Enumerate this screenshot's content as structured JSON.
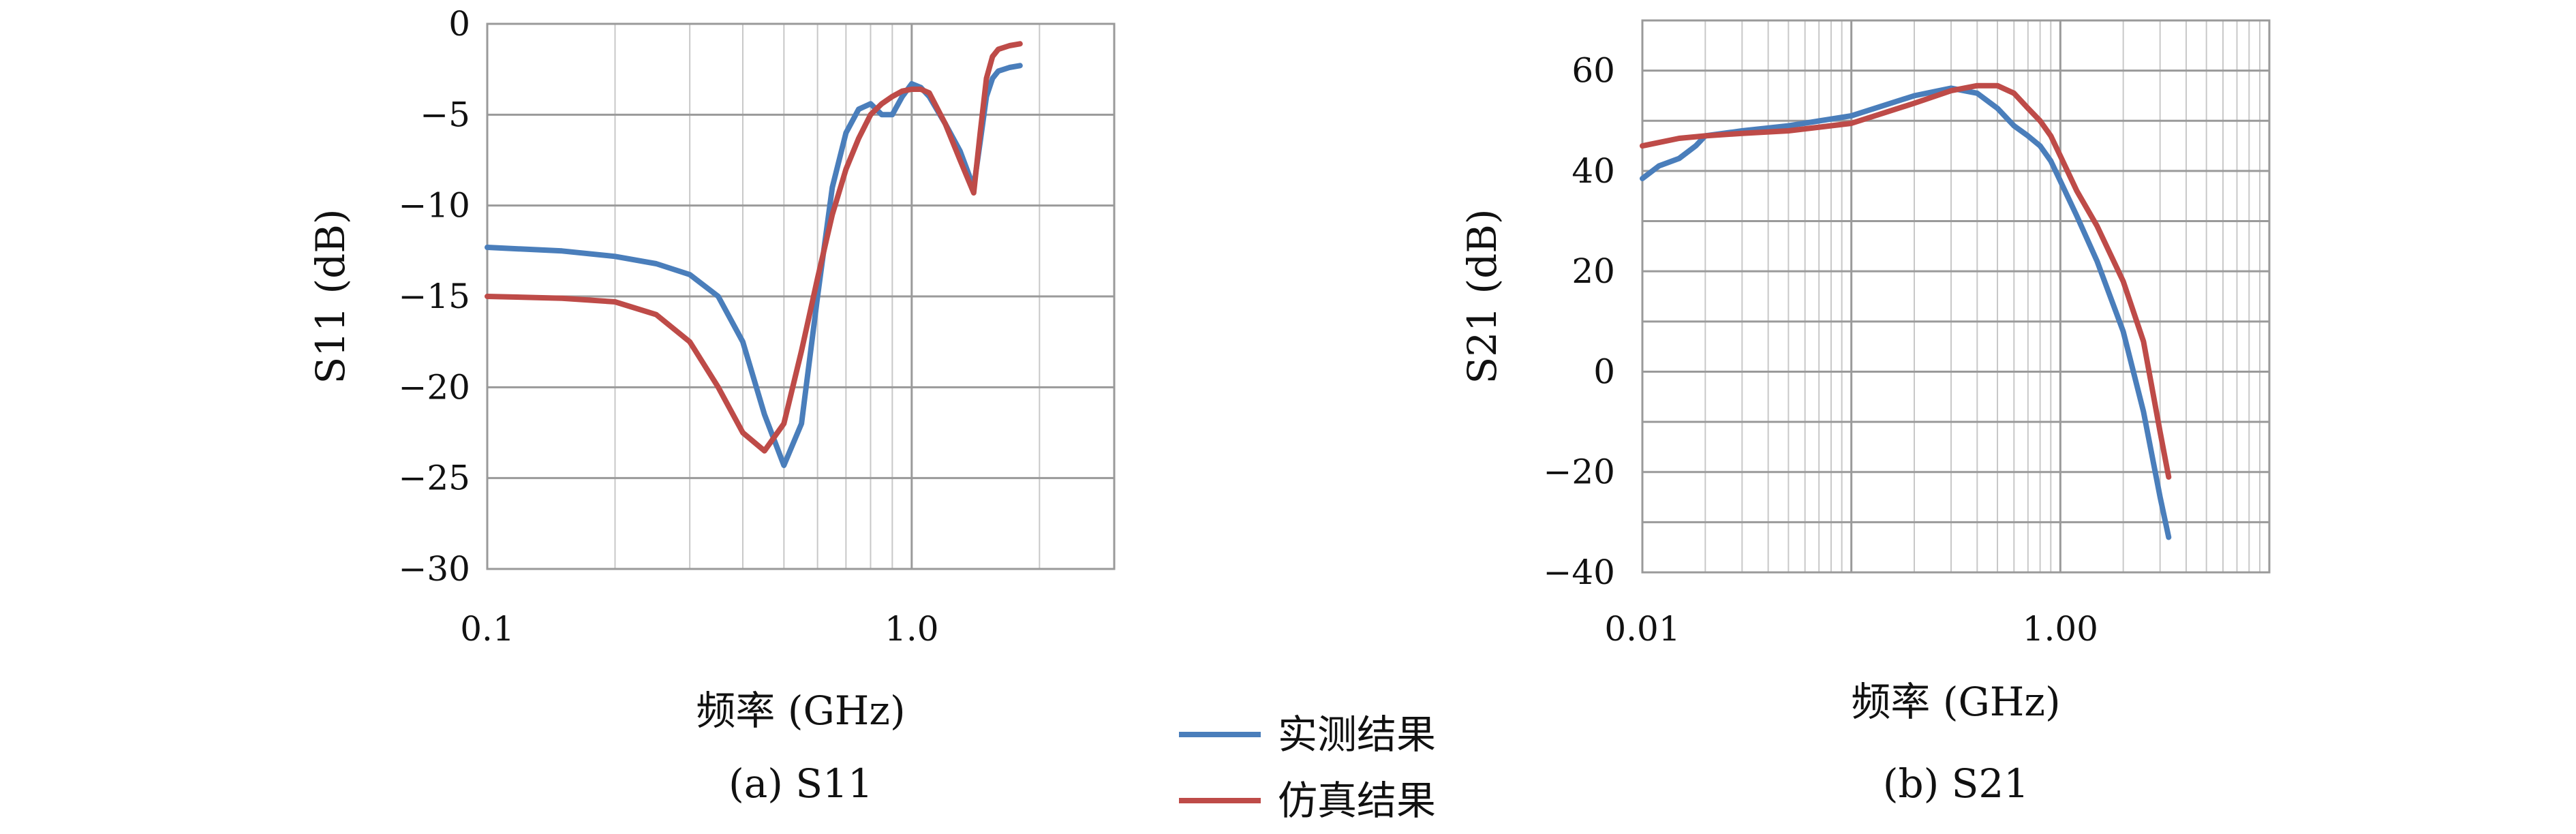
{
  "colors": {
    "measured": "#4a7ebb",
    "simulated": "#be4b48",
    "grid_major": "#9a9a9a",
    "grid_minor": "#c8c8c8"
  },
  "legend": {
    "measured": "实测结果",
    "simulated": "仿真结果"
  },
  "chart_data": [
    {
      "type": "line",
      "caption": "(a) S11",
      "xlabel": "频率 (GHz)",
      "ylabel": "S11 (dB)",
      "xscale": "log",
      "xlim": [
        0.1,
        3.0
      ],
      "ylim": [
        -30,
        0
      ],
      "xticks": [
        0.1,
        1.0
      ],
      "xtick_labels": [
        "0.1",
        "1.0"
      ],
      "yticks": [
        0,
        -5,
        -10,
        -15,
        -20,
        -25,
        -30
      ],
      "ytick_labels": [
        "0",
        "−5",
        "−10",
        "−15",
        "−20",
        "−25",
        "−30"
      ],
      "grid": true,
      "series": [
        {
          "name": "实测结果",
          "x": [
            0.1,
            0.15,
            0.2,
            0.25,
            0.3,
            0.35,
            0.4,
            0.45,
            0.5,
            0.55,
            0.6,
            0.65,
            0.7,
            0.75,
            0.8,
            0.85,
            0.9,
            0.95,
            1.0,
            1.05,
            1.1,
            1.2,
            1.3,
            1.4,
            1.45,
            1.5,
            1.55,
            1.6,
            1.7,
            1.8
          ],
          "y": [
            -12.3,
            -12.5,
            -12.8,
            -13.2,
            -13.8,
            -15.0,
            -17.5,
            -21.5,
            -24.3,
            -22.0,
            -15.0,
            -9.0,
            -6.0,
            -4.7,
            -4.4,
            -5.0,
            -5.0,
            -4.0,
            -3.3,
            -3.5,
            -4.0,
            -5.5,
            -7.0,
            -9.0,
            -6.5,
            -4.0,
            -3.0,
            -2.6,
            -2.4,
            -2.3
          ]
        },
        {
          "name": "仿真结果",
          "x": [
            0.1,
            0.15,
            0.2,
            0.25,
            0.3,
            0.35,
            0.4,
            0.45,
            0.5,
            0.55,
            0.6,
            0.65,
            0.7,
            0.75,
            0.8,
            0.85,
            0.9,
            0.95,
            1.0,
            1.05,
            1.1,
            1.2,
            1.3,
            1.4,
            1.45,
            1.5,
            1.55,
            1.6,
            1.7,
            1.8
          ],
          "y": [
            -15.0,
            -15.1,
            -15.3,
            -16.0,
            -17.5,
            -20.0,
            -22.5,
            -23.5,
            -22.0,
            -18.0,
            -14.0,
            -10.5,
            -8.0,
            -6.3,
            -5.0,
            -4.4,
            -4.0,
            -3.7,
            -3.6,
            -3.6,
            -3.8,
            -5.5,
            -7.5,
            -9.3,
            -6.0,
            -3.0,
            -1.8,
            -1.4,
            -1.2,
            -1.1
          ]
        }
      ]
    },
    {
      "type": "line",
      "caption": "(b) S21",
      "xlabel": "频率 (GHz)",
      "ylabel": "S21 (dB)",
      "xscale": "log",
      "xlim": [
        0.01,
        10
      ],
      "ylim": [
        -40,
        70
      ],
      "xticks": [
        0.01,
        1.0
      ],
      "xtick_labels": [
        "0.01",
        "1.00"
      ],
      "yticks": [
        60,
        40,
        20,
        0,
        -20,
        -40
      ],
      "ytick_labels": [
        "60",
        "40",
        "20",
        "0",
        "−20",
        "−40"
      ],
      "grid": true,
      "series": [
        {
          "name": "实测结果",
          "x": [
            0.01,
            0.012,
            0.015,
            0.018,
            0.02,
            0.03,
            0.05,
            0.1,
            0.2,
            0.3,
            0.4,
            0.5,
            0.6,
            0.7,
            0.8,
            0.9,
            1.0,
            1.2,
            1.5,
            2.0,
            2.5,
            3.0,
            3.3
          ],
          "y": [
            38.5,
            41.0,
            42.5,
            45.0,
            47.0,
            48.0,
            49.0,
            51.0,
            55.0,
            56.5,
            55.5,
            52.5,
            49.0,
            47.0,
            45.0,
            42.0,
            38.0,
            31.0,
            22.0,
            8.0,
            -8.0,
            -25.0,
            -33.0
          ]
        },
        {
          "name": "仿真结果",
          "x": [
            0.01,
            0.015,
            0.02,
            0.03,
            0.05,
            0.1,
            0.2,
            0.3,
            0.4,
            0.5,
            0.6,
            0.7,
            0.8,
            0.9,
            1.0,
            1.2,
            1.5,
            2.0,
            2.5,
            3.0,
            3.3
          ],
          "y": [
            45.0,
            46.5,
            47.0,
            47.5,
            48.0,
            49.5,
            53.5,
            56.0,
            57.0,
            57.0,
            55.5,
            52.5,
            50.0,
            47.0,
            43.0,
            36.0,
            29.0,
            18.0,
            6.0,
            -12.0,
            -21.0
          ]
        }
      ]
    }
  ]
}
